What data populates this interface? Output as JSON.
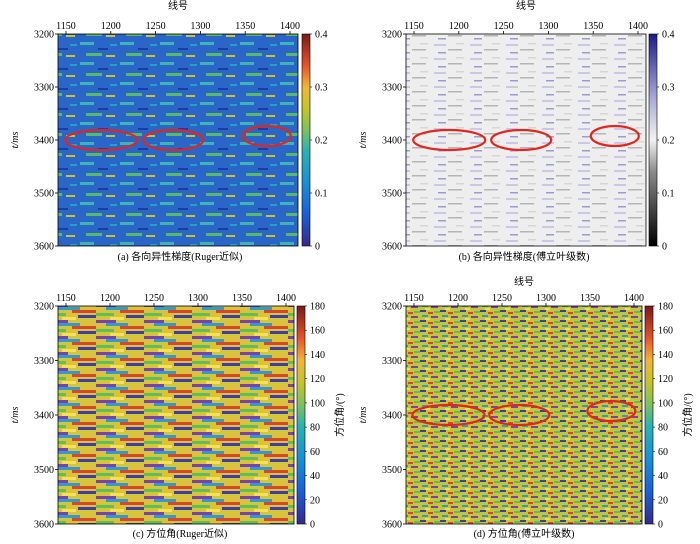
{
  "panels": [
    {
      "caption": "(a) 各向异性梯度(Ruger近似)",
      "top_label": "线号",
      "y_label": "t/ms",
      "x_ticks": [
        "1150",
        "1200",
        "1250",
        "1300",
        "1350",
        "1400"
      ],
      "y_ticks": [
        "3200",
        "3300",
        "3400",
        "3500",
        "3600"
      ],
      "colorbar_ticks": [
        "0",
        "0.1",
        "0.2",
        "0.3",
        "0.4"
      ],
      "colorbar_label": "",
      "colormap": "parula-like",
      "ellipses": 3
    },
    {
      "caption": "(b) 各向异性梯度(傅立叶级数)",
      "top_label": "线号",
      "y_label": "t/ms",
      "x_ticks": [
        "1150",
        "1200",
        "1250",
        "1300",
        "1350",
        "1400"
      ],
      "y_ticks": [
        "3200",
        "3300",
        "3400",
        "3500",
        "3600"
      ],
      "colorbar_ticks": [
        "0",
        "0.1",
        "0.2",
        "0.3",
        "0.4"
      ],
      "colorbar_label": "",
      "colormap": "gray-blue",
      "ellipses": 3
    },
    {
      "caption": "(c) 方位角(Ruger近似)",
      "top_label": "",
      "y_label": "t/ms",
      "x_ticks": [
        "1150",
        "1200",
        "1250",
        "1300",
        "1350",
        "1400"
      ],
      "y_ticks": [
        "3200",
        "3300",
        "3400",
        "3500",
        "3600"
      ],
      "colorbar_ticks": [
        "0",
        "20",
        "40",
        "60",
        "80",
        "100",
        "120",
        "140",
        "160",
        "180"
      ],
      "colorbar_label": "方位角/(°)",
      "colormap": "parula-like",
      "ellipses": 0
    },
    {
      "caption": "(d) 方位角(傅立叶级数)",
      "top_label": "线号",
      "y_label": "t/ms",
      "x_ticks": [
        "1150",
        "1200",
        "1250",
        "1300",
        "1350",
        "1400"
      ],
      "y_ticks": [
        "3200",
        "3300",
        "3400",
        "3500",
        "3600"
      ],
      "colorbar_ticks": [
        "0",
        "20",
        "40",
        "60",
        "80",
        "100",
        "120",
        "140",
        "160",
        "180"
      ],
      "colorbar_label": "方位角/(°)",
      "colormap": "parula-like",
      "ellipses": 3
    }
  ]
}
